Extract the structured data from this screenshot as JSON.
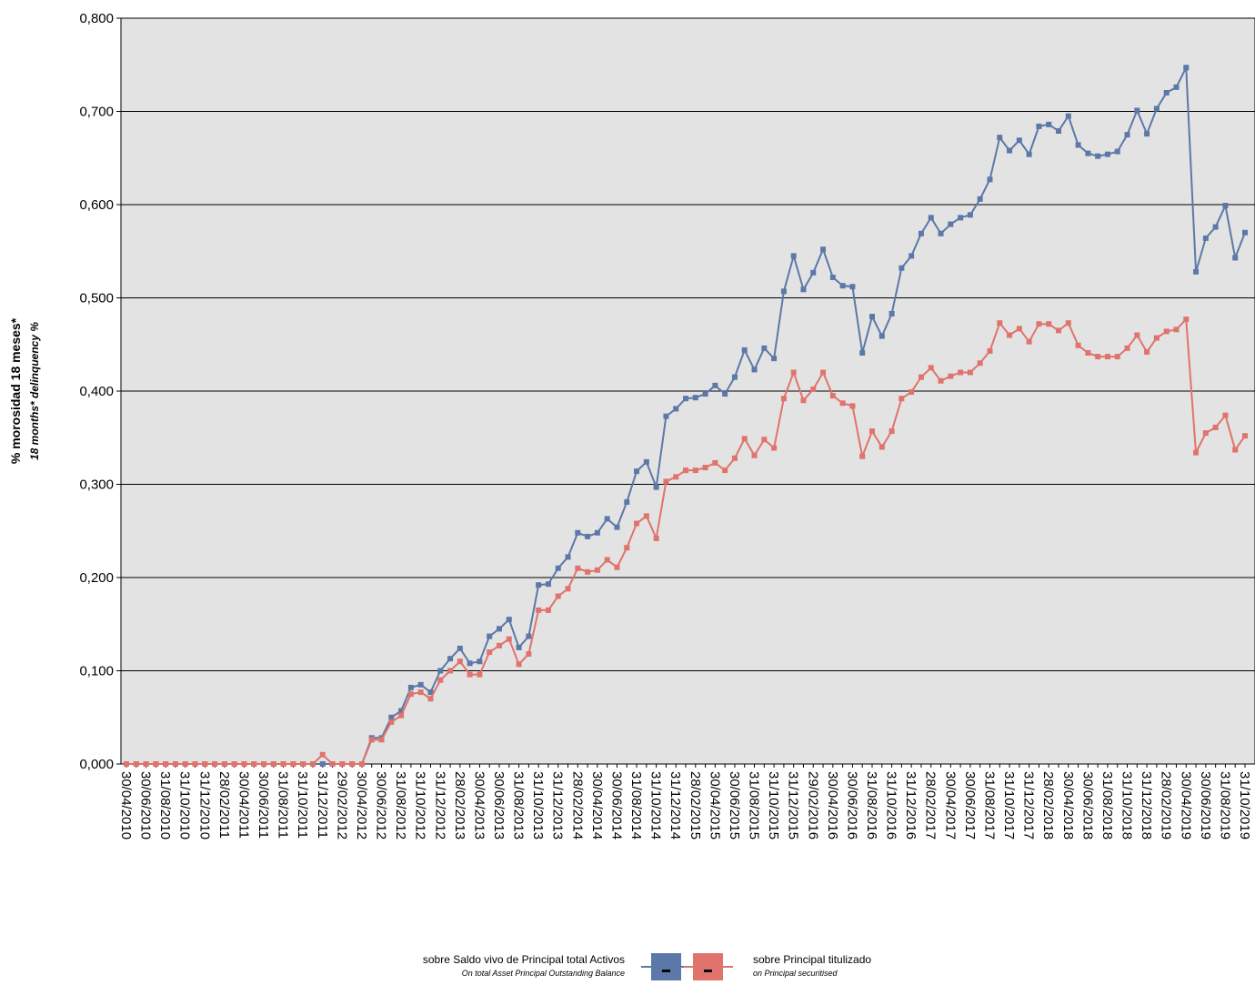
{
  "chart_data": {
    "type": "line",
    "y_label": "% morosidad 18 meses*",
    "y_label_en": "18 months* delinquency %",
    "categories": [
      "30/04/2010",
      null,
      "30/06/2010",
      null,
      "31/08/2010",
      null,
      "31/10/2010",
      null,
      "31/12/2010",
      null,
      "28/02/2011",
      null,
      "30/04/2011",
      null,
      "30/06/2011",
      null,
      "31/08/2011",
      null,
      "31/10/2011",
      null,
      "31/12/2011",
      null,
      "29/02/2012",
      null,
      "30/04/2012",
      null,
      "30/06/2012",
      null,
      "31/08/2012",
      null,
      "31/10/2012",
      null,
      "31/12/2012",
      null,
      "28/02/2013",
      null,
      "30/04/2013",
      null,
      "30/06/2013",
      null,
      "31/08/2013",
      null,
      "31/10/2013",
      null,
      "31/12/2013",
      null,
      "28/02/2014",
      null,
      "30/04/2014",
      null,
      "30/06/2014",
      null,
      "31/08/2014",
      null,
      "31/10/2014",
      null,
      "31/12/2014",
      null,
      "28/02/2015",
      null,
      "30/04/2015",
      null,
      "30/06/2015",
      null,
      "31/08/2015",
      null,
      "31/10/2015",
      null,
      "31/12/2015",
      null,
      "29/02/2016",
      null,
      "30/04/2016",
      null,
      "30/06/2016",
      null,
      "31/08/2016",
      null,
      "31/10/2016",
      null,
      "31/12/2016",
      null,
      "28/02/2017",
      null,
      "30/04/2017",
      null,
      "30/06/2017",
      null,
      "31/08/2017",
      null,
      "31/10/2017",
      null,
      "31/12/2017",
      null,
      "28/02/2018",
      null,
      "30/04/2018",
      null,
      "30/06/2018",
      null,
      "31/08/2018",
      null,
      "31/10/2018",
      null,
      "31/12/2018",
      null,
      "28/02/2019",
      null,
      "30/04/2019",
      null,
      "30/06/2019",
      null,
      "31/08/2019",
      null,
      "31/10/2019"
    ],
    "series": [
      {
        "name": "sobre Saldo vivo de Principal total Activos",
        "name_en": "On total Asset Principal Outstanding Balance",
        "color": "#5b78a8",
        "values": [
          0,
          0,
          0,
          0,
          0,
          0,
          0,
          0,
          0,
          0,
          0,
          0,
          0,
          0,
          0,
          0,
          0,
          0,
          0,
          0,
          0,
          0,
          0,
          0,
          0,
          0.028,
          0.028,
          0.05,
          0.057,
          0.082,
          0.085,
          0.077,
          0.1,
          0.113,
          0.124,
          0.108,
          0.11,
          0.137,
          0.145,
          0.155,
          0.125,
          0.137,
          0.192,
          0.193,
          0.21,
          0.222,
          0.248,
          0.244,
          0.248,
          0.263,
          0.254,
          0.281,
          0.314,
          0.324,
          0.297,
          0.373,
          0.381,
          0.392,
          0.393,
          0.397,
          0.406,
          0.397,
          0.415,
          0.444,
          0.423,
          0.446,
          0.435,
          0.507,
          0.545,
          0.509,
          0.527,
          0.552,
          0.522,
          0.513,
          0.512,
          0.441,
          0.48,
          0.459,
          0.483,
          0.532,
          0.545,
          0.569,
          0.586,
          0.569,
          0.579,
          0.586,
          0.589,
          0.606,
          0.627,
          0.672,
          0.658,
          0.669,
          0.654,
          0.684,
          0.686,
          0.679,
          0.695,
          0.664,
          0.655,
          0.652,
          0.654,
          0.657,
          0.675,
          0.701,
          0.676,
          0.703,
          0.72,
          0.726,
          0.747,
          0.528,
          0.564,
          0.576,
          0.599,
          0.543,
          0.57
        ]
      },
      {
        "name": "sobre Principal titulizado",
        "name_en": "on Principal securitised",
        "color": "#e0736c",
        "values": [
          0,
          0,
          0,
          0,
          0,
          0,
          0,
          0,
          0,
          0,
          0,
          0,
          0,
          0,
          0,
          0,
          0,
          0,
          0,
          0,
          0.01,
          0,
          0,
          0,
          0,
          0.026,
          0.026,
          0.045,
          0.052,
          0.075,
          0.077,
          0.07,
          0.09,
          0.1,
          0.11,
          0.096,
          0.096,
          0.12,
          0.127,
          0.134,
          0.107,
          0.118,
          0.165,
          0.165,
          0.18,
          0.188,
          0.21,
          0.206,
          0.208,
          0.219,
          0.211,
          0.232,
          0.258,
          0.266,
          0.242,
          0.303,
          0.308,
          0.315,
          0.315,
          0.318,
          0.323,
          0.315,
          0.328,
          0.349,
          0.331,
          0.348,
          0.339,
          0.392,
          0.42,
          0.39,
          0.402,
          0.42,
          0.395,
          0.387,
          0.384,
          0.33,
          0.357,
          0.34,
          0.357,
          0.392,
          0.399,
          0.415,
          0.425,
          0.411,
          0.416,
          0.42,
          0.42,
          0.43,
          0.443,
          0.473,
          0.46,
          0.467,
          0.453,
          0.472,
          0.472,
          0.465,
          0.473,
          0.449,
          0.441,
          0.437,
          0.437,
          0.437,
          0.446,
          0.46,
          0.442,
          0.457,
          0.464,
          0.466,
          0.477,
          0.334,
          0.355,
          0.361,
          0.374,
          0.337,
          0.352
        ]
      }
    ],
    "ylim": [
      0,
      0.8
    ],
    "yticks": [
      {
        "value": 0,
        "label": "0,000"
      },
      {
        "value": 0.1,
        "label": "0,100"
      },
      {
        "value": 0.2,
        "label": "0,200"
      },
      {
        "value": 0.3,
        "label": "0,300"
      },
      {
        "value": 0.4,
        "label": "0,400"
      },
      {
        "value": 0.5,
        "label": "0,500"
      },
      {
        "value": 0.6,
        "label": "0,600"
      },
      {
        "value": 0.7,
        "label": "0,700"
      },
      {
        "value": 0.8,
        "label": "0,800"
      }
    ],
    "grid": true
  }
}
